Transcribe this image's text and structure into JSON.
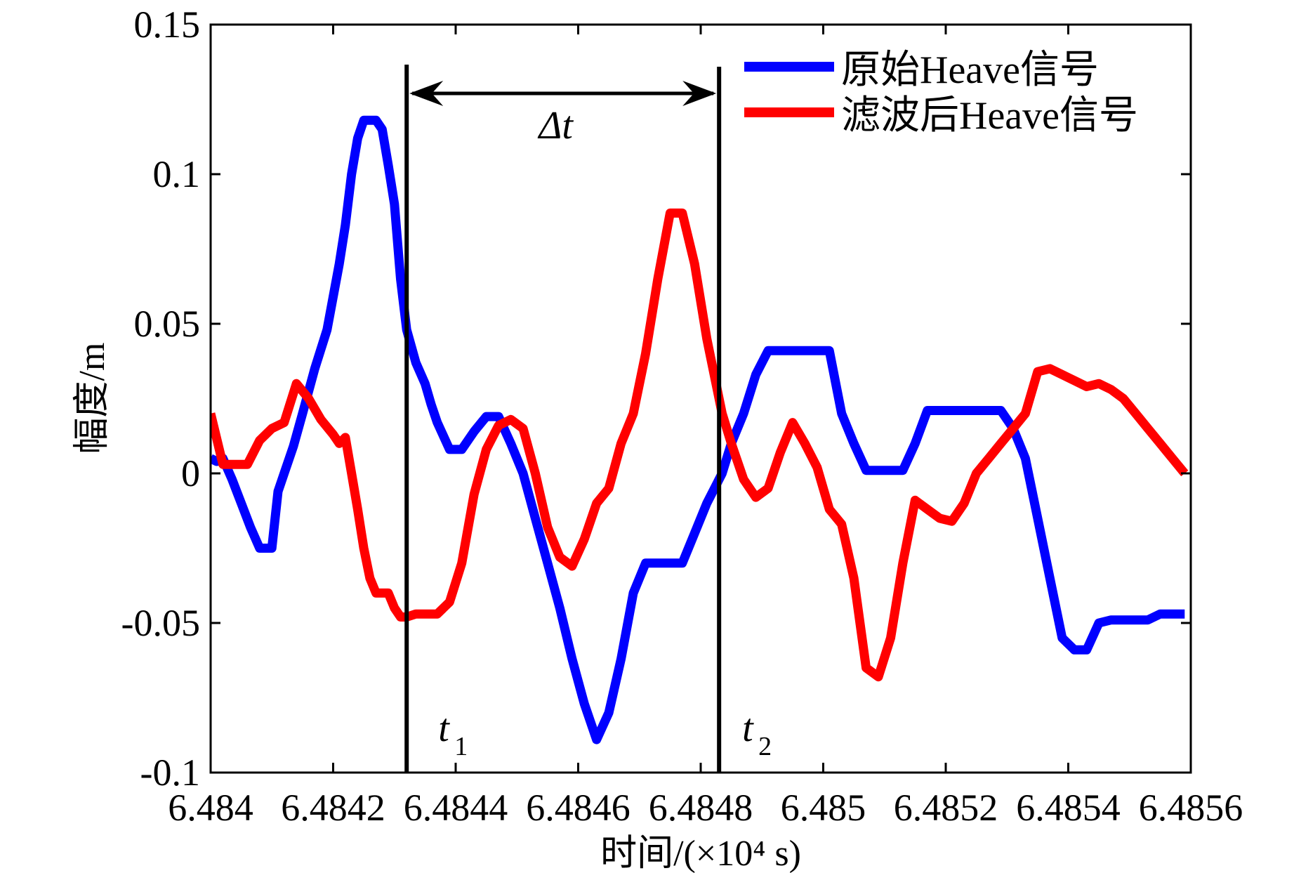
{
  "chart_data": {
    "type": "line",
    "title": "",
    "xlabel": "时间/(×10⁴ s)",
    "ylabel": "幅度/m",
    "xlim": [
      6.484,
      6.4856
    ],
    "ylim": [
      -0.1,
      0.15
    ],
    "xticks": [
      6.484,
      6.4842,
      6.4844,
      6.4846,
      6.4848,
      6.485,
      6.4852,
      6.4854,
      6.4856
    ],
    "xtick_labels": [
      "6.484",
      "6.4842",
      "6.4844",
      "6.4846",
      "6.4848",
      "6.485",
      "6.4852",
      "6.4854",
      "6.4856"
    ],
    "yticks": [
      -0.1,
      -0.05,
      0,
      0.05,
      0.1,
      0.15
    ],
    "ytick_labels": [
      "-0.1",
      "-0.05",
      "0",
      "0.05",
      "0.1",
      "0.15"
    ],
    "grid": false,
    "legend_position": "top-right",
    "series": [
      {
        "name": "原始Heave信号",
        "color": "#0000ff",
        "x": [
          6.484,
          6.48401,
          6.48402,
          6.484035,
          6.48405,
          6.484065,
          6.48408,
          6.48409,
          6.4841,
          6.48411,
          6.48412,
          6.484135,
          6.48415,
          6.48417,
          6.48419,
          6.48421,
          6.48422,
          6.48423,
          6.48424,
          6.48425,
          6.48426,
          6.48427,
          6.48428,
          6.48429,
          6.4843,
          6.48431,
          6.48432,
          6.484335,
          6.48435,
          6.48436,
          6.48437,
          6.48439,
          6.48441,
          6.48443,
          6.48445,
          6.48447,
          6.48449,
          6.48451,
          6.48453,
          6.48455,
          6.48457,
          6.48459,
          6.48461,
          6.48463,
          6.48465,
          6.48467,
          6.48469,
          6.48471,
          6.48473,
          6.48475,
          6.48477,
          6.48479,
          6.48481,
          6.484835,
          6.48485,
          6.48487,
          6.48489,
          6.48491,
          6.48493,
          6.48495,
          6.48497,
          6.48499,
          6.48501,
          6.48503,
          6.48505,
          6.48507,
          6.48509,
          6.48511,
          6.48513,
          6.48515,
          6.48517,
          6.48519,
          6.48521,
          6.48523,
          6.48525,
          6.48527,
          6.48529,
          6.48531,
          6.48533,
          6.48535,
          6.48537,
          6.48539,
          6.48541,
          6.48543,
          6.48545,
          6.48547,
          6.48549,
          6.48551,
          6.48553,
          6.48555,
          6.48557,
          6.48559
        ],
        "y": [
          0.005,
          0.004,
          0.005,
          -0.002,
          -0.01,
          -0.018,
          -0.025,
          -0.025,
          -0.025,
          -0.006,
          0.0,
          0.009,
          0.02,
          0.035,
          0.048,
          0.07,
          0.083,
          0.1,
          0.112,
          0.118,
          0.118,
          0.118,
          0.115,
          0.103,
          0.09,
          0.065,
          0.048,
          0.037,
          0.03,
          0.023,
          0.017,
          0.008,
          0.008,
          0.014,
          0.019,
          0.019,
          0.01,
          0.0,
          -0.015,
          -0.03,
          -0.045,
          -0.062,
          -0.077,
          -0.089,
          -0.08,
          -0.062,
          -0.04,
          -0.03,
          -0.03,
          -0.03,
          -0.03,
          -0.02,
          -0.01,
          0.0,
          0.01,
          0.02,
          0.033,
          0.041,
          0.041,
          0.041,
          0.041,
          0.041,
          0.041,
          0.02,
          0.01,
          0.001,
          0.001,
          0.001,
          0.001,
          0.01,
          0.021,
          0.021,
          0.021,
          0.021,
          0.021,
          0.021,
          0.021,
          0.015,
          0.005,
          -0.015,
          -0.035,
          -0.055,
          -0.059,
          -0.059,
          -0.05,
          -0.049,
          -0.049,
          -0.049,
          -0.049,
          -0.047,
          -0.047,
          -0.047
        ]
      },
      {
        "name": "滤波后Heave信号",
        "color": "#ff0000",
        "x": [
          6.484,
          6.48402,
          6.48404,
          6.48406,
          6.48408,
          6.4841,
          6.48412,
          6.48414,
          6.48416,
          6.48418,
          6.4842,
          6.48421,
          6.48422,
          6.48423,
          6.48424,
          6.48425,
          6.48426,
          6.48427,
          6.48428,
          6.48429,
          6.4843,
          6.48431,
          6.48432,
          6.484335,
          6.48435,
          6.48437,
          6.48439,
          6.48441,
          6.48443,
          6.48445,
          6.48447,
          6.48449,
          6.48451,
          6.48453,
          6.48455,
          6.48457,
          6.48459,
          6.48461,
          6.48463,
          6.48465,
          6.48467,
          6.48469,
          6.48471,
          6.48473,
          6.48475,
          6.48477,
          6.48479,
          6.48481,
          6.484835,
          6.48485,
          6.48487,
          6.48489,
          6.48491,
          6.48493,
          6.48495,
          6.48497,
          6.48499,
          6.48501,
          6.48503,
          6.48505,
          6.48507,
          6.48509,
          6.48511,
          6.48513,
          6.48515,
          6.48517,
          6.48519,
          6.48521,
          6.48523,
          6.48525,
          6.48527,
          6.48529,
          6.48531,
          6.48533,
          6.48535,
          6.48537,
          6.48539,
          6.48541,
          6.48543,
          6.48545,
          6.48547,
          6.48549,
          6.48551,
          6.48553,
          6.48555,
          6.48557,
          6.48559
        ],
        "y": [
          0.02,
          0.003,
          0.003,
          0.003,
          0.011,
          0.015,
          0.017,
          0.03,
          0.025,
          0.018,
          0.013,
          0.01,
          0.012,
          0.0,
          -0.012,
          -0.025,
          -0.035,
          -0.04,
          -0.04,
          -0.04,
          -0.045,
          -0.048,
          -0.048,
          -0.047,
          -0.047,
          -0.047,
          -0.043,
          -0.03,
          -0.007,
          0.008,
          0.016,
          0.018,
          0.015,
          0.0,
          -0.018,
          -0.028,
          -0.031,
          -0.022,
          -0.01,
          -0.005,
          0.01,
          0.02,
          0.04,
          0.065,
          0.087,
          0.087,
          0.07,
          0.045,
          0.02,
          0.01,
          -0.002,
          -0.008,
          -0.005,
          0.007,
          0.017,
          0.01,
          0.002,
          -0.012,
          -0.017,
          -0.035,
          -0.065,
          -0.068,
          -0.055,
          -0.03,
          -0.009,
          -0.012,
          -0.015,
          -0.016,
          -0.01,
          0.0,
          0.005,
          0.01,
          0.015,
          0.02,
          0.034,
          0.035,
          0.033,
          0.031,
          0.029,
          0.03,
          0.028,
          0.025,
          0.02,
          0.015,
          0.01,
          0.005,
          0.0
        ]
      }
    ],
    "annotations": {
      "t1_x": 6.48432,
      "t2_x": 6.48483,
      "arrow_y": 0.127,
      "delta_label": "Δt",
      "t1_label": "t",
      "t1_sub": "1",
      "t2_label": "t",
      "t2_sub": "2"
    }
  }
}
